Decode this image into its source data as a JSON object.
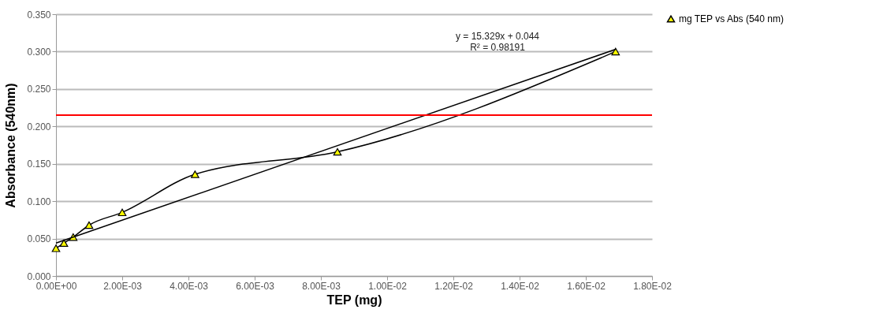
{
  "chart_data": {
    "type": "line",
    "xlabel": "TEP (mg)",
    "ylabel": "Absorbance (540nm)",
    "xlim": [
      0,
      0.018
    ],
    "xticks": [
      {
        "value": 0,
        "label": "0.00E+00"
      },
      {
        "value": 0.002,
        "label": "2.00E-03"
      },
      {
        "value": 0.004,
        "label": "4.00E-03"
      },
      {
        "value": 0.006,
        "label": "6.00E-03"
      },
      {
        "value": 0.008,
        "label": "8.00E-03"
      },
      {
        "value": 0.01,
        "label": "1.00E-02"
      },
      {
        "value": 0.012,
        "label": "1.20E-02"
      },
      {
        "value": 0.014,
        "label": "1.40E-02"
      },
      {
        "value": 0.016,
        "label": "1.60E-02"
      },
      {
        "value": 0.018,
        "label": "1.80E-02"
      }
    ],
    "ylim": [
      0,
      0.35
    ],
    "yticks": [
      {
        "value": 0,
        "label": "0.000"
      },
      {
        "value": 0.05,
        "label": "0.050"
      },
      {
        "value": 0.1,
        "label": "0.100"
      },
      {
        "value": 0.15,
        "label": "0.150"
      },
      {
        "value": 0.2,
        "label": "0.200"
      },
      {
        "value": 0.25,
        "label": "0.250"
      },
      {
        "value": 0.3,
        "label": "0.300"
      },
      {
        "value": 0.35,
        "label": "0.350"
      }
    ],
    "series": [
      {
        "name": "mg TEP vs Abs (540 nm)",
        "color": "#000000",
        "x": [
          0,
          0.00024,
          0.00052,
          0.001,
          0.002,
          0.0042,
          0.0085,
          0.0169
        ],
        "values": [
          0.037,
          0.044,
          0.052,
          0.068,
          0.085,
          0.136,
          0.166,
          0.3
        ],
        "colors": [
          "#ffff00",
          "#ffff00",
          "#ffff00",
          "#ffff00",
          "#ffff00",
          "#ffff00",
          "#ffff00",
          "#ffff00"
        ]
      },
      {
        "type": "line",
        "color": "#000000",
        "x": [
          0,
          0.0169
        ],
        "values": [
          0.044,
          0.303
        ],
        "marker": "none"
      }
    ],
    "ref_lines": [
      {
        "axis": "y",
        "value": 0.215,
        "color": "#ff0000"
      }
    ],
    "annotations": [
      "y = 15.329x + 0.044",
      "R² = 0.98191"
    ],
    "marker": "triangle",
    "line_style": "solid",
    "grid": "y",
    "legend": "right"
  }
}
